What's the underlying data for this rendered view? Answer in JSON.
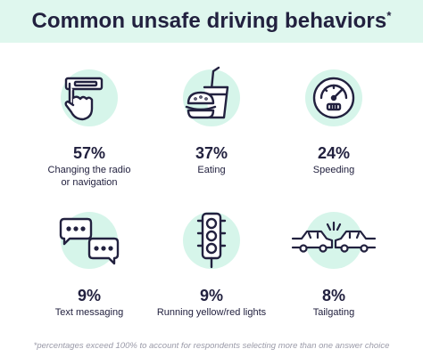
{
  "header": {
    "title": "Common unsafe driving behaviors",
    "title_mark": "*"
  },
  "colors": {
    "header_bg": "#dff7ee",
    "icon_circle": "#d6f5ea",
    "text": "#22213f",
    "footnote": "#9a9aa8"
  },
  "chart_data": {
    "type": "table",
    "title": "Common unsafe driving behaviors*",
    "unit": "%",
    "items": [
      {
        "value": 57,
        "display": "57%",
        "label": "Changing the radio\nor navigation",
        "icon": "finger-pressing-radio-icon"
      },
      {
        "value": 37,
        "display": "37%",
        "label": "Eating",
        "icon": "burger-and-drink-icon"
      },
      {
        "value": 24,
        "display": "24%",
        "label": "Speeding",
        "icon": "speedometer-icon"
      },
      {
        "value": 9,
        "display": "9%",
        "label": "Text messaging",
        "icon": "chat-bubbles-icon"
      },
      {
        "value": 9,
        "display": "9%",
        "label": "Running yellow/red lights",
        "icon": "traffic-light-icon"
      },
      {
        "value": 8,
        "display": "8%",
        "label": "Tailgating",
        "icon": "car-collision-icon"
      }
    ]
  },
  "footnote": "*percentages exceed 100% to account for respondents selecting more than one answer choice"
}
